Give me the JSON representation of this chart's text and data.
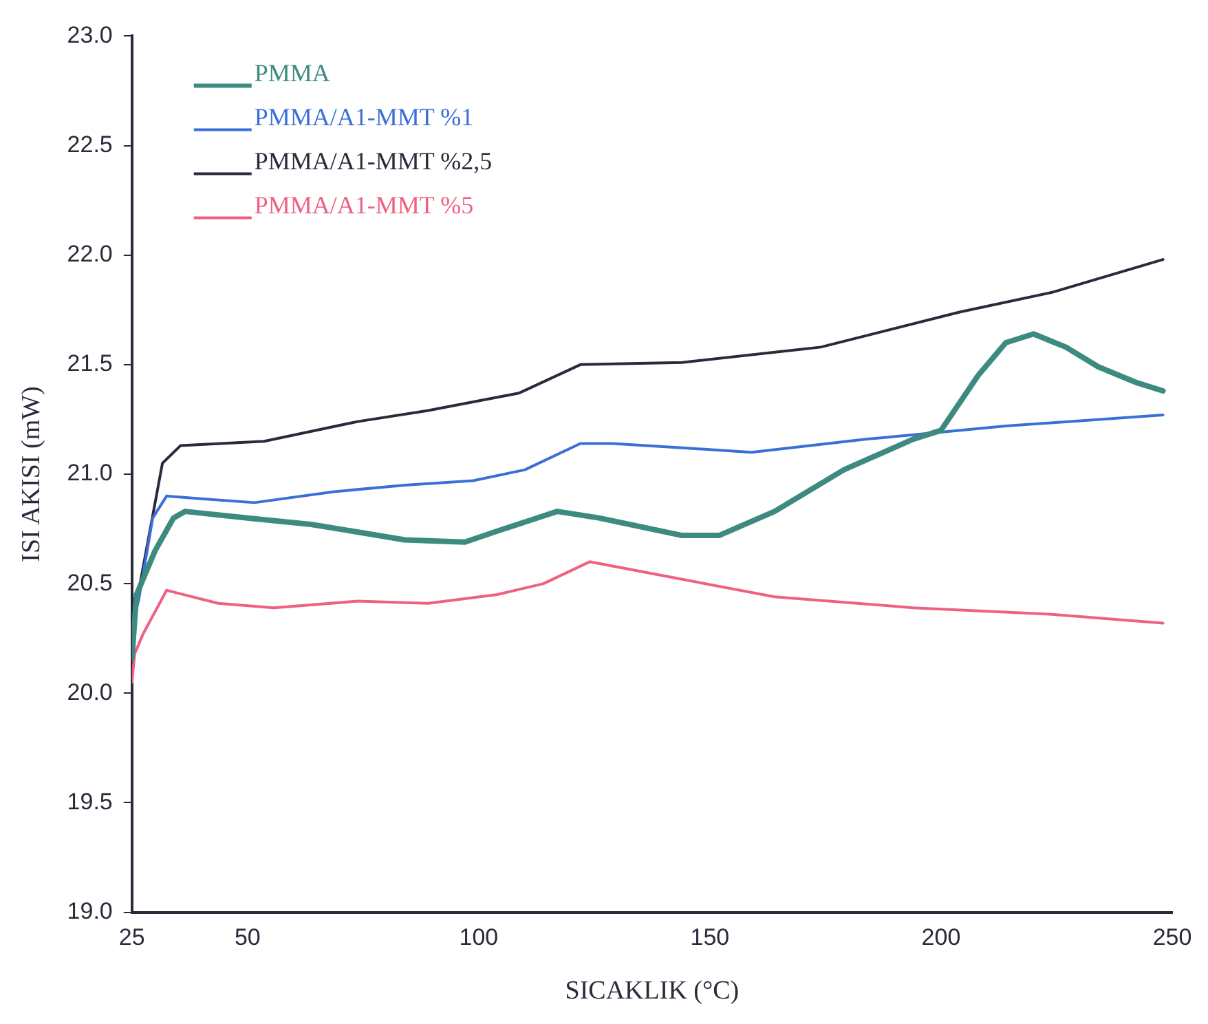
{
  "chart_data": {
    "type": "line",
    "xlabel": "SICAKLIK (°C)",
    "ylabel": "ISI AKISI (mW)",
    "xlim": [
      25,
      250
    ],
    "xticks": [
      25,
      50,
      100,
      150,
      200,
      250
    ],
    "ylim": [
      19,
      23
    ],
    "yticks": [
      {
        "value": 19,
        "label": "19.0"
      },
      {
        "value": 19.5,
        "label": "19.5"
      },
      {
        "value": 20,
        "label": "20.0"
      },
      {
        "value": 20.5,
        "label": "20.5"
      },
      {
        "value": 21,
        "label": "21.0"
      },
      {
        "value": 21.5,
        "label": "21.5"
      },
      {
        "value": 22,
        "label": "22.0"
      },
      {
        "value": 22.5,
        "label": "22.5"
      },
      {
        "value": 23,
        "label": "23.0"
      }
    ],
    "grid": false,
    "legend": "top left",
    "marker": "none",
    "line_style": "solid",
    "series": [
      {
        "name": "PMMA",
        "color": "#3d8a80",
        "x": [
          25,
          26,
          30,
          34,
          36.5,
          50,
          64,
          84,
          97,
          104,
          117,
          126,
          144,
          152,
          164,
          179,
          194,
          200,
          208,
          214,
          220,
          227,
          234,
          242,
          248
        ],
        "values": [
          20.16,
          20.45,
          20.65,
          20.8,
          20.83,
          20.8,
          20.77,
          20.7,
          20.69,
          20.74,
          20.83,
          20.8,
          20.72,
          20.72,
          20.83,
          21.02,
          21.16,
          21.2,
          21.45,
          21.6,
          21.64,
          21.58,
          21.49,
          21.42,
          21.38
        ]
      },
      {
        "name": "PMMA/A1-MMT %1",
        "color": "#3a6fd8",
        "x": [
          25,
          26.5,
          29.5,
          32.5,
          38.5,
          51.5,
          68.7,
          84,
          98.8,
          110,
          122,
          129,
          144,
          159,
          184,
          214,
          248
        ],
        "values": [
          20.3,
          20.43,
          20.8,
          20.9,
          20.89,
          20.87,
          20.92,
          20.95,
          20.97,
          21.02,
          21.14,
          21.14,
          21.12,
          21.1,
          21.16,
          21.22,
          21.27
        ]
      },
      {
        "name": "PMMA/A1-MMT %2,5",
        "color": "#2a2a3a",
        "x": [
          25,
          26.5,
          31.6,
          35.5,
          53.6,
          73.8,
          88.9,
          108.7,
          122,
          144,
          174,
          204,
          224,
          248
        ],
        "values": [
          20.4,
          20.47,
          21.05,
          21.13,
          21.15,
          21.24,
          21.29,
          21.37,
          21.5,
          21.51,
          21.58,
          21.74,
          21.83,
          21.98
        ]
      },
      {
        "name": "PMMA/A1-MMT %5",
        "color": "#f06080",
        "x": [
          25,
          25.6,
          27.4,
          32.5,
          43.7,
          55.7,
          73.8,
          89,
          104,
          114,
          124,
          144,
          164,
          194,
          224,
          248
        ],
        "values": [
          20.05,
          20.18,
          20.27,
          20.47,
          20.41,
          20.39,
          20.42,
          20.41,
          20.45,
          20.5,
          20.6,
          20.52,
          20.44,
          20.39,
          20.36,
          20.32
        ]
      }
    ]
  }
}
